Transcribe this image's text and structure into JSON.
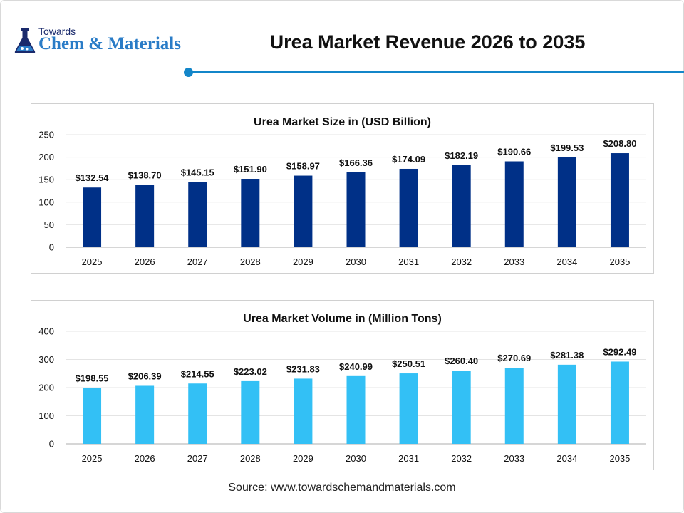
{
  "header": {
    "logo_small": "Towards",
    "logo_big": "Chem & Materials",
    "title": "Urea Market Revenue 2026 to 2035"
  },
  "chart_data": [
    {
      "type": "bar",
      "title": "Urea Market Size in (USD Billion)",
      "xlabel": "",
      "ylabel": "",
      "categories": [
        "2025",
        "2026",
        "2027",
        "2028",
        "2029",
        "2030",
        "2031",
        "2032",
        "2033",
        "2034",
        "2035"
      ],
      "values": [
        132.54,
        138.7,
        145.15,
        151.9,
        158.97,
        166.36,
        174.09,
        182.19,
        190.66,
        199.53,
        208.8
      ],
      "data_labels": [
        "$132.54",
        "$138.70",
        "$145.15",
        "$151.90",
        "$158.97",
        "$166.36",
        "$174.09",
        "$182.19",
        "$190.66",
        "$199.53",
        "$208.80"
      ],
      "yticks": [
        0,
        50,
        100,
        150,
        200,
        250
      ],
      "ylim": [
        0,
        250
      ],
      "grid": true,
      "legend": "none",
      "color": "#003087"
    },
    {
      "type": "bar",
      "title": "Urea Market Volume in (Million Tons)",
      "xlabel": "",
      "ylabel": "",
      "categories": [
        "2025",
        "2026",
        "2027",
        "2028",
        "2029",
        "2030",
        "2031",
        "2032",
        "2033",
        "2034",
        "2035"
      ],
      "values": [
        198.55,
        206.39,
        214.55,
        223.02,
        231.83,
        240.99,
        250.51,
        260.4,
        270.69,
        281.38,
        292.49
      ],
      "data_labels": [
        "$198.55",
        "$206.39",
        "$214.55",
        "$223.02",
        "$231.83",
        "$240.99",
        "$250.51",
        "$260.40",
        "$270.69",
        "$281.38",
        "$292.49"
      ],
      "yticks": [
        0,
        100,
        200,
        300,
        400
      ],
      "ylim": [
        0,
        400
      ],
      "grid": true,
      "legend": "none",
      "color": "#33c0f5"
    }
  ],
  "footer": {
    "source": "Source: www.towardschemandmaterials.com"
  }
}
